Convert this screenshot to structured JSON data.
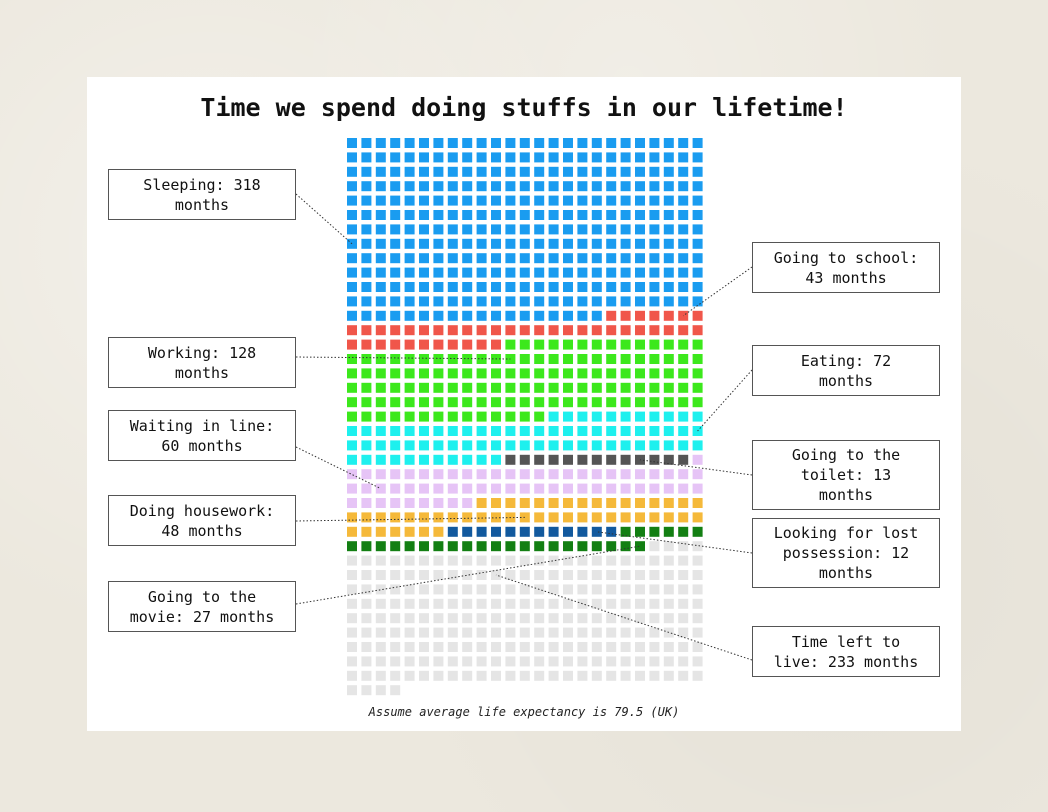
{
  "chart_data": {
    "type": "waffle",
    "title": "Time we spend doing stuffs in our lifetime!",
    "note": "Assume average life expectancy is 79.5 (UK)",
    "unit": "months",
    "total_months": 954,
    "grid_columns": 25,
    "categories": [
      {
        "name": "Sleeping",
        "value": 318,
        "color": "#1a9cf0",
        "label": "Sleeping: 318 months"
      },
      {
        "name": "Going to school",
        "value": 43,
        "color": "#f0564a",
        "label": "Going to school: 43 months"
      },
      {
        "name": "Working",
        "value": 128,
        "color": "#3ce81c",
        "label": "Working: 128 months"
      },
      {
        "name": "Eating",
        "value": 72,
        "color": "#1ef0ee",
        "label": "Eating: 72 months"
      },
      {
        "name": "Going to the toilet",
        "value": 13,
        "color": "#555555",
        "label": "Going to the toilet: 13 months"
      },
      {
        "name": "Waiting in line",
        "value": 60,
        "color": "#e6c4f6",
        "label": "Waiting in line: 60 months"
      },
      {
        "name": "Doing housework",
        "value": 48,
        "color": "#f5b93a",
        "label": "Doing housework: 48 months"
      },
      {
        "name": "Looking for lost possession",
        "value": 12,
        "color": "#12599e",
        "label": "Looking for lost possession: 12 months"
      },
      {
        "name": "Going to the movie",
        "value": 27,
        "color": "#137f13",
        "label": "Going to the movie: 27 months"
      },
      {
        "name": "Time left to live",
        "value": 233,
        "color": "#e5e5e5",
        "label": "Time left to live: 233 months"
      }
    ]
  },
  "labels": {
    "sleeping": "Sleeping: 318\nmonths",
    "working": "Working: 128\nmonths",
    "waiting": "Waiting in line:\n60 months",
    "housework": "Doing housework:\n48 months",
    "movie": "Going to the\nmovie: 27 months",
    "school": "Going to school:\n43 months",
    "eating": "Eating: 72\nmonths",
    "toilet": "Going to the\ntoilet: 13\nmonths",
    "lost": "Looking for lost\npossession: 12\nmonths",
    "left": "Time left to\nlive: 233 months"
  }
}
